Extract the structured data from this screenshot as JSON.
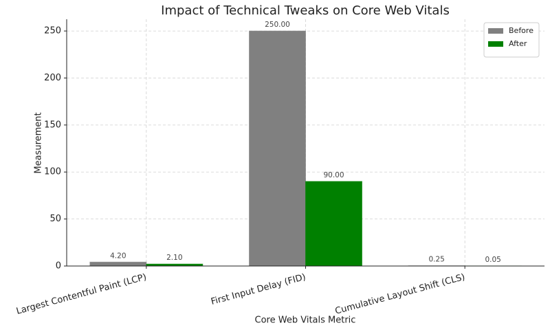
{
  "chart_data": {
    "type": "bar",
    "title": "Impact of Technical Tweaks on Core Web Vitals",
    "x_label": "Core Web Vitals Metric",
    "y_label": "Measurement",
    "categories": [
      "Largest Contentful Paint (LCP)",
      "First Input Delay (FID)",
      "Cumulative Layout Shift (CLS)"
    ],
    "series": [
      {
        "name": "Before",
        "color": "#808080",
        "values": [
          4.2,
          250,
          0.25
        ],
        "value_labels": [
          "4.20",
          "250.00",
          "0.25"
        ]
      },
      {
        "name": "After",
        "color": "#008000",
        "values": [
          2.1,
          90,
          0.05
        ],
        "value_labels": [
          "2.10",
          "90.00",
          "0.05"
        ]
      }
    ],
    "ylim": [
      0,
      262.5
    ],
    "yticks": [
      0,
      50,
      100,
      150,
      200,
      250
    ],
    "grid": true,
    "legend": "upper right"
  }
}
